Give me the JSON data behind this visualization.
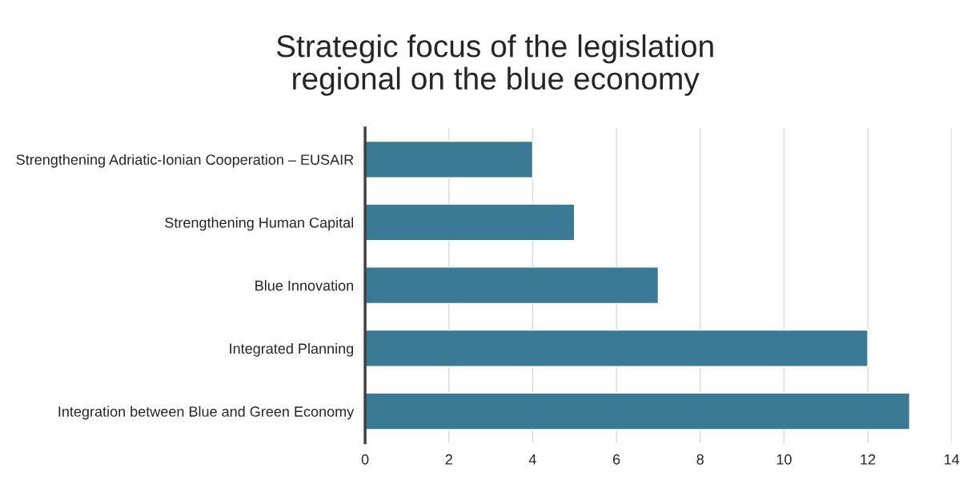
{
  "chart_data": {
    "type": "bar",
    "orientation": "horizontal",
    "title": "Strategic focus of the legislation\nregional on the blue economy",
    "categories": [
      "Strengthening Adriatic-Ionian Cooperation – EUSAIR",
      "Strengthening Human Capital",
      "Blue Innovation",
      "Integrated Planning",
      "Integration between Blue and Green Economy"
    ],
    "values": [
      4,
      5,
      7,
      12,
      13
    ],
    "color": "#3a7a94",
    "xlim": [
      0,
      14
    ],
    "xticks": [
      0,
      2,
      4,
      6,
      8,
      10,
      12,
      14
    ],
    "grid": "x",
    "legend": false
  }
}
